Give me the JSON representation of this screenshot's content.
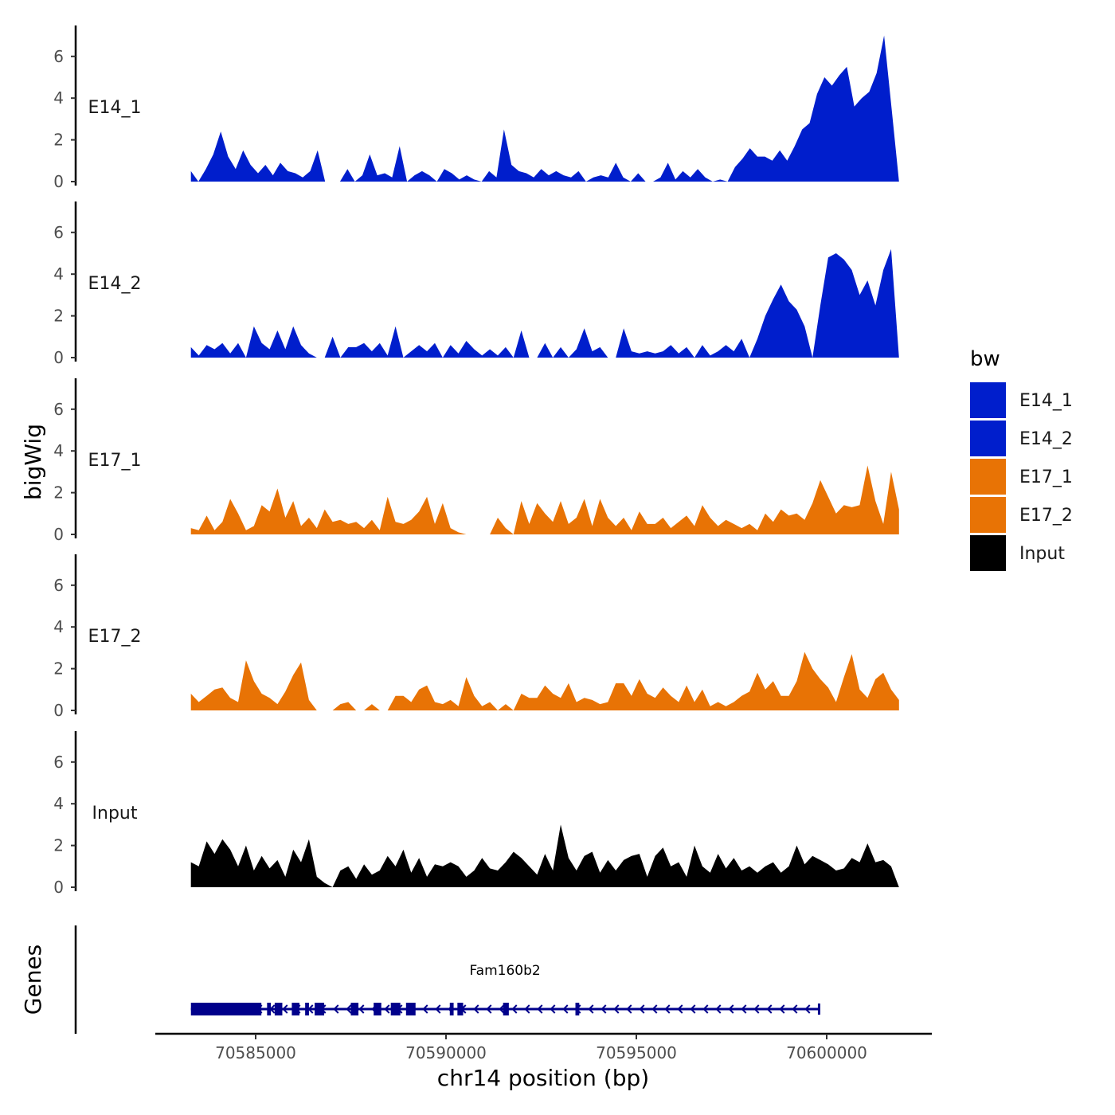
{
  "chart_data": {
    "type": "area",
    "xlabel": "chr14 position (bp)",
    "ylabel": "bigWig",
    "genes_label": "Genes",
    "xlim": [
      70582000,
      70602500
    ],
    "x_range_data": [
      70583300,
      70601900
    ],
    "ylim": [
      0,
      7.5
    ],
    "x_ticks": [
      70585000,
      70590000,
      70595000,
      70600000
    ],
    "x_tick_labels": [
      "70585000",
      "70590000",
      "70595000",
      "70600000"
    ],
    "y_ticks": [
      0,
      2,
      4,
      6
    ],
    "y_tick_labels": [
      "0",
      "2",
      "4",
      "6"
    ],
    "legend": {
      "title": "bw",
      "entries": [
        {
          "label": "E14_1",
          "color": "#001ECC"
        },
        {
          "label": "E14_2",
          "color": "#001ECC"
        },
        {
          "label": "E17_1",
          "color": "#E87305"
        },
        {
          "label": "E17_2",
          "color": "#E87305"
        },
        {
          "label": "Input",
          "color": "#000000"
        }
      ]
    },
    "series": [
      {
        "name": "E14_1",
        "color": "#001ECC",
        "values": [
          0.5,
          0,
          0.6,
          1.3,
          2.4,
          1.2,
          0.6,
          1.5,
          0.8,
          0.4,
          0.8,
          0.3,
          0.9,
          0.5,
          0.4,
          0.2,
          0.5,
          1.5,
          0,
          0,
          0,
          0.6,
          0,
          0.3,
          1.3,
          0.3,
          0.4,
          0.2,
          1.7,
          0,
          0.3,
          0.5,
          0.3,
          0,
          0.6,
          0.4,
          0.1,
          0.3,
          0.1,
          0,
          0.5,
          0.2,
          2.5,
          0.8,
          0.5,
          0.4,
          0.2,
          0.6,
          0.3,
          0.5,
          0.3,
          0.2,
          0.5,
          0,
          0.2,
          0.3,
          0.2,
          0.9,
          0.2,
          0,
          0.4,
          0,
          0,
          0.2,
          0.9,
          0.1,
          0.5,
          0.2,
          0.6,
          0.2,
          0,
          0.1,
          0,
          0.7,
          1.1,
          1.6,
          1.2,
          1.2,
          1.0,
          1.5,
          1.0,
          1.7,
          2.5,
          2.8,
          4.2,
          5.0,
          4.6,
          5.1,
          5.5,
          3.6,
          4.0,
          4.3,
          5.2,
          7.0,
          3.5,
          0
        ]
      },
      {
        "name": "E14_2",
        "color": "#001ECC",
        "values": [
          0.5,
          0.1,
          0.6,
          0.4,
          0.7,
          0.2,
          0.7,
          0,
          1.5,
          0.7,
          0.4,
          1.3,
          0.4,
          1.5,
          0.6,
          0.2,
          0,
          0,
          1.0,
          0,
          0.5,
          0.5,
          0.7,
          0.3,
          0.7,
          0.1,
          1.5,
          0,
          0.3,
          0.6,
          0.3,
          0.7,
          0,
          0.6,
          0.2,
          0.8,
          0.4,
          0.1,
          0.4,
          0.1,
          0.5,
          0,
          1.3,
          0,
          0,
          0.7,
          0,
          0.5,
          0,
          0.4,
          1.4,
          0.3,
          0.5,
          0,
          0,
          1.4,
          0.3,
          0.2,
          0.3,
          0.2,
          0.3,
          0.6,
          0.2,
          0.5,
          0,
          0.6,
          0.1,
          0.3,
          0.6,
          0.3,
          0.9,
          0,
          0.9,
          2.0,
          2.8,
          3.5,
          2.7,
          2.3,
          1.5,
          0,
          2.5,
          4.8,
          5.0,
          4.7,
          4.2,
          3.0,
          3.7,
          2.5,
          4.2,
          5.2,
          0
        ]
      },
      {
        "name": "E17_1",
        "color": "#E87305",
        "values": [
          0.3,
          0.2,
          0.9,
          0.2,
          0.6,
          1.7,
          1.0,
          0.2,
          0.4,
          1.4,
          1.1,
          2.2,
          0.8,
          1.6,
          0.4,
          0.8,
          0.3,
          1.2,
          0.6,
          0.7,
          0.5,
          0.6,
          0.3,
          0.7,
          0.2,
          1.8,
          0.6,
          0.5,
          0.7,
          1.1,
          1.8,
          0.5,
          1.5,
          0.3,
          0.1,
          0,
          0,
          0,
          0,
          0.8,
          0.3,
          0,
          1.6,
          0.5,
          1.5,
          1.0,
          0.6,
          1.6,
          0.5,
          0.8,
          1.7,
          0.4,
          1.7,
          0.8,
          0.4,
          0.8,
          0.2,
          1.1,
          0.5,
          0.5,
          0.8,
          0.3,
          0.6,
          0.9,
          0.4,
          1.4,
          0.8,
          0.4,
          0.7,
          0.5,
          0.3,
          0.5,
          0.2,
          1.0,
          0.6,
          1.2,
          0.9,
          1.0,
          0.7,
          1.5,
          2.6,
          1.8,
          1.0,
          1.4,
          1.3,
          1.4,
          3.3,
          1.6,
          0.5,
          3.0,
          1.2
        ]
      },
      {
        "name": "E17_2",
        "color": "#E87305",
        "values": [
          0.8,
          0.4,
          0.7,
          1.0,
          1.1,
          0.6,
          0.4,
          2.4,
          1.4,
          0.8,
          0.6,
          0.3,
          0.9,
          1.7,
          2.3,
          0.5,
          0,
          0,
          0,
          0.3,
          0.4,
          0,
          0,
          0.3,
          0,
          0,
          0.7,
          0.7,
          0.4,
          1.0,
          1.2,
          0.4,
          0.3,
          0.5,
          0.2,
          1.6,
          0.7,
          0.2,
          0.4,
          0,
          0.3,
          0,
          0.8,
          0.6,
          0.6,
          1.2,
          0.8,
          0.6,
          1.3,
          0.4,
          0.6,
          0.5,
          0.3,
          0.4,
          1.3,
          1.3,
          0.7,
          1.5,
          0.8,
          0.6,
          1.1,
          0.7,
          0.4,
          1.2,
          0.4,
          1.0,
          0.2,
          0.4,
          0.2,
          0.4,
          0.7,
          0.9,
          1.8,
          1.0,
          1.4,
          0.7,
          0.7,
          1.4,
          2.8,
          2.0,
          1.5,
          1.1,
          0.4,
          1.6,
          2.7,
          1.0,
          0.6,
          1.5,
          1.8,
          1.0,
          0.5
        ]
      },
      {
        "name": "Input",
        "color": "#000000",
        "values": [
          1.2,
          1.0,
          2.2,
          1.6,
          2.3,
          1.8,
          1.0,
          2.0,
          0.8,
          1.5,
          0.9,
          1.3,
          0.5,
          1.8,
          1.2,
          2.3,
          0.5,
          0.2,
          0,
          0.8,
          1.0,
          0.4,
          1.1,
          0.6,
          0.8,
          1.5,
          1.0,
          1.8,
          0.7,
          1.4,
          0.5,
          1.1,
          1.0,
          1.2,
          1.0,
          0.5,
          0.8,
          1.4,
          0.9,
          0.8,
          1.2,
          1.7,
          1.4,
          1.0,
          0.6,
          1.6,
          0.8,
          3.0,
          1.4,
          0.8,
          1.5,
          1.7,
          0.7,
          1.3,
          0.8,
          1.3,
          1.5,
          1.6,
          0.5,
          1.5,
          1.9,
          1.0,
          1.2,
          0.5,
          2.0,
          1.0,
          0.7,
          1.6,
          0.9,
          1.4,
          0.8,
          1.0,
          0.7,
          1.0,
          1.2,
          0.7,
          1.0,
          2.0,
          1.1,
          1.5,
          1.3,
          1.1,
          0.8,
          0.9,
          1.4,
          1.2,
          2.1,
          1.2,
          1.3,
          1.0,
          0
        ]
      }
    ],
    "gene": {
      "name": "Fam160b2",
      "color": "#00008B",
      "start": 70583300,
      "end": 70599800,
      "strand": "-",
      "exons": [
        [
          70583300,
          70585150
        ],
        [
          70585300,
          70585400
        ],
        [
          70585500,
          70585700
        ],
        [
          70585950,
          70586150
        ],
        [
          70586300,
          70586400
        ],
        [
          70586550,
          70586800
        ],
        [
          70587500,
          70587700
        ],
        [
          70588100,
          70588300
        ],
        [
          70588550,
          70588800
        ],
        [
          70588950,
          70589200
        ],
        [
          70590100,
          70590200
        ],
        [
          70590300,
          70590450
        ],
        [
          70591500,
          70591650
        ],
        [
          70593400,
          70593500
        ]
      ]
    }
  }
}
